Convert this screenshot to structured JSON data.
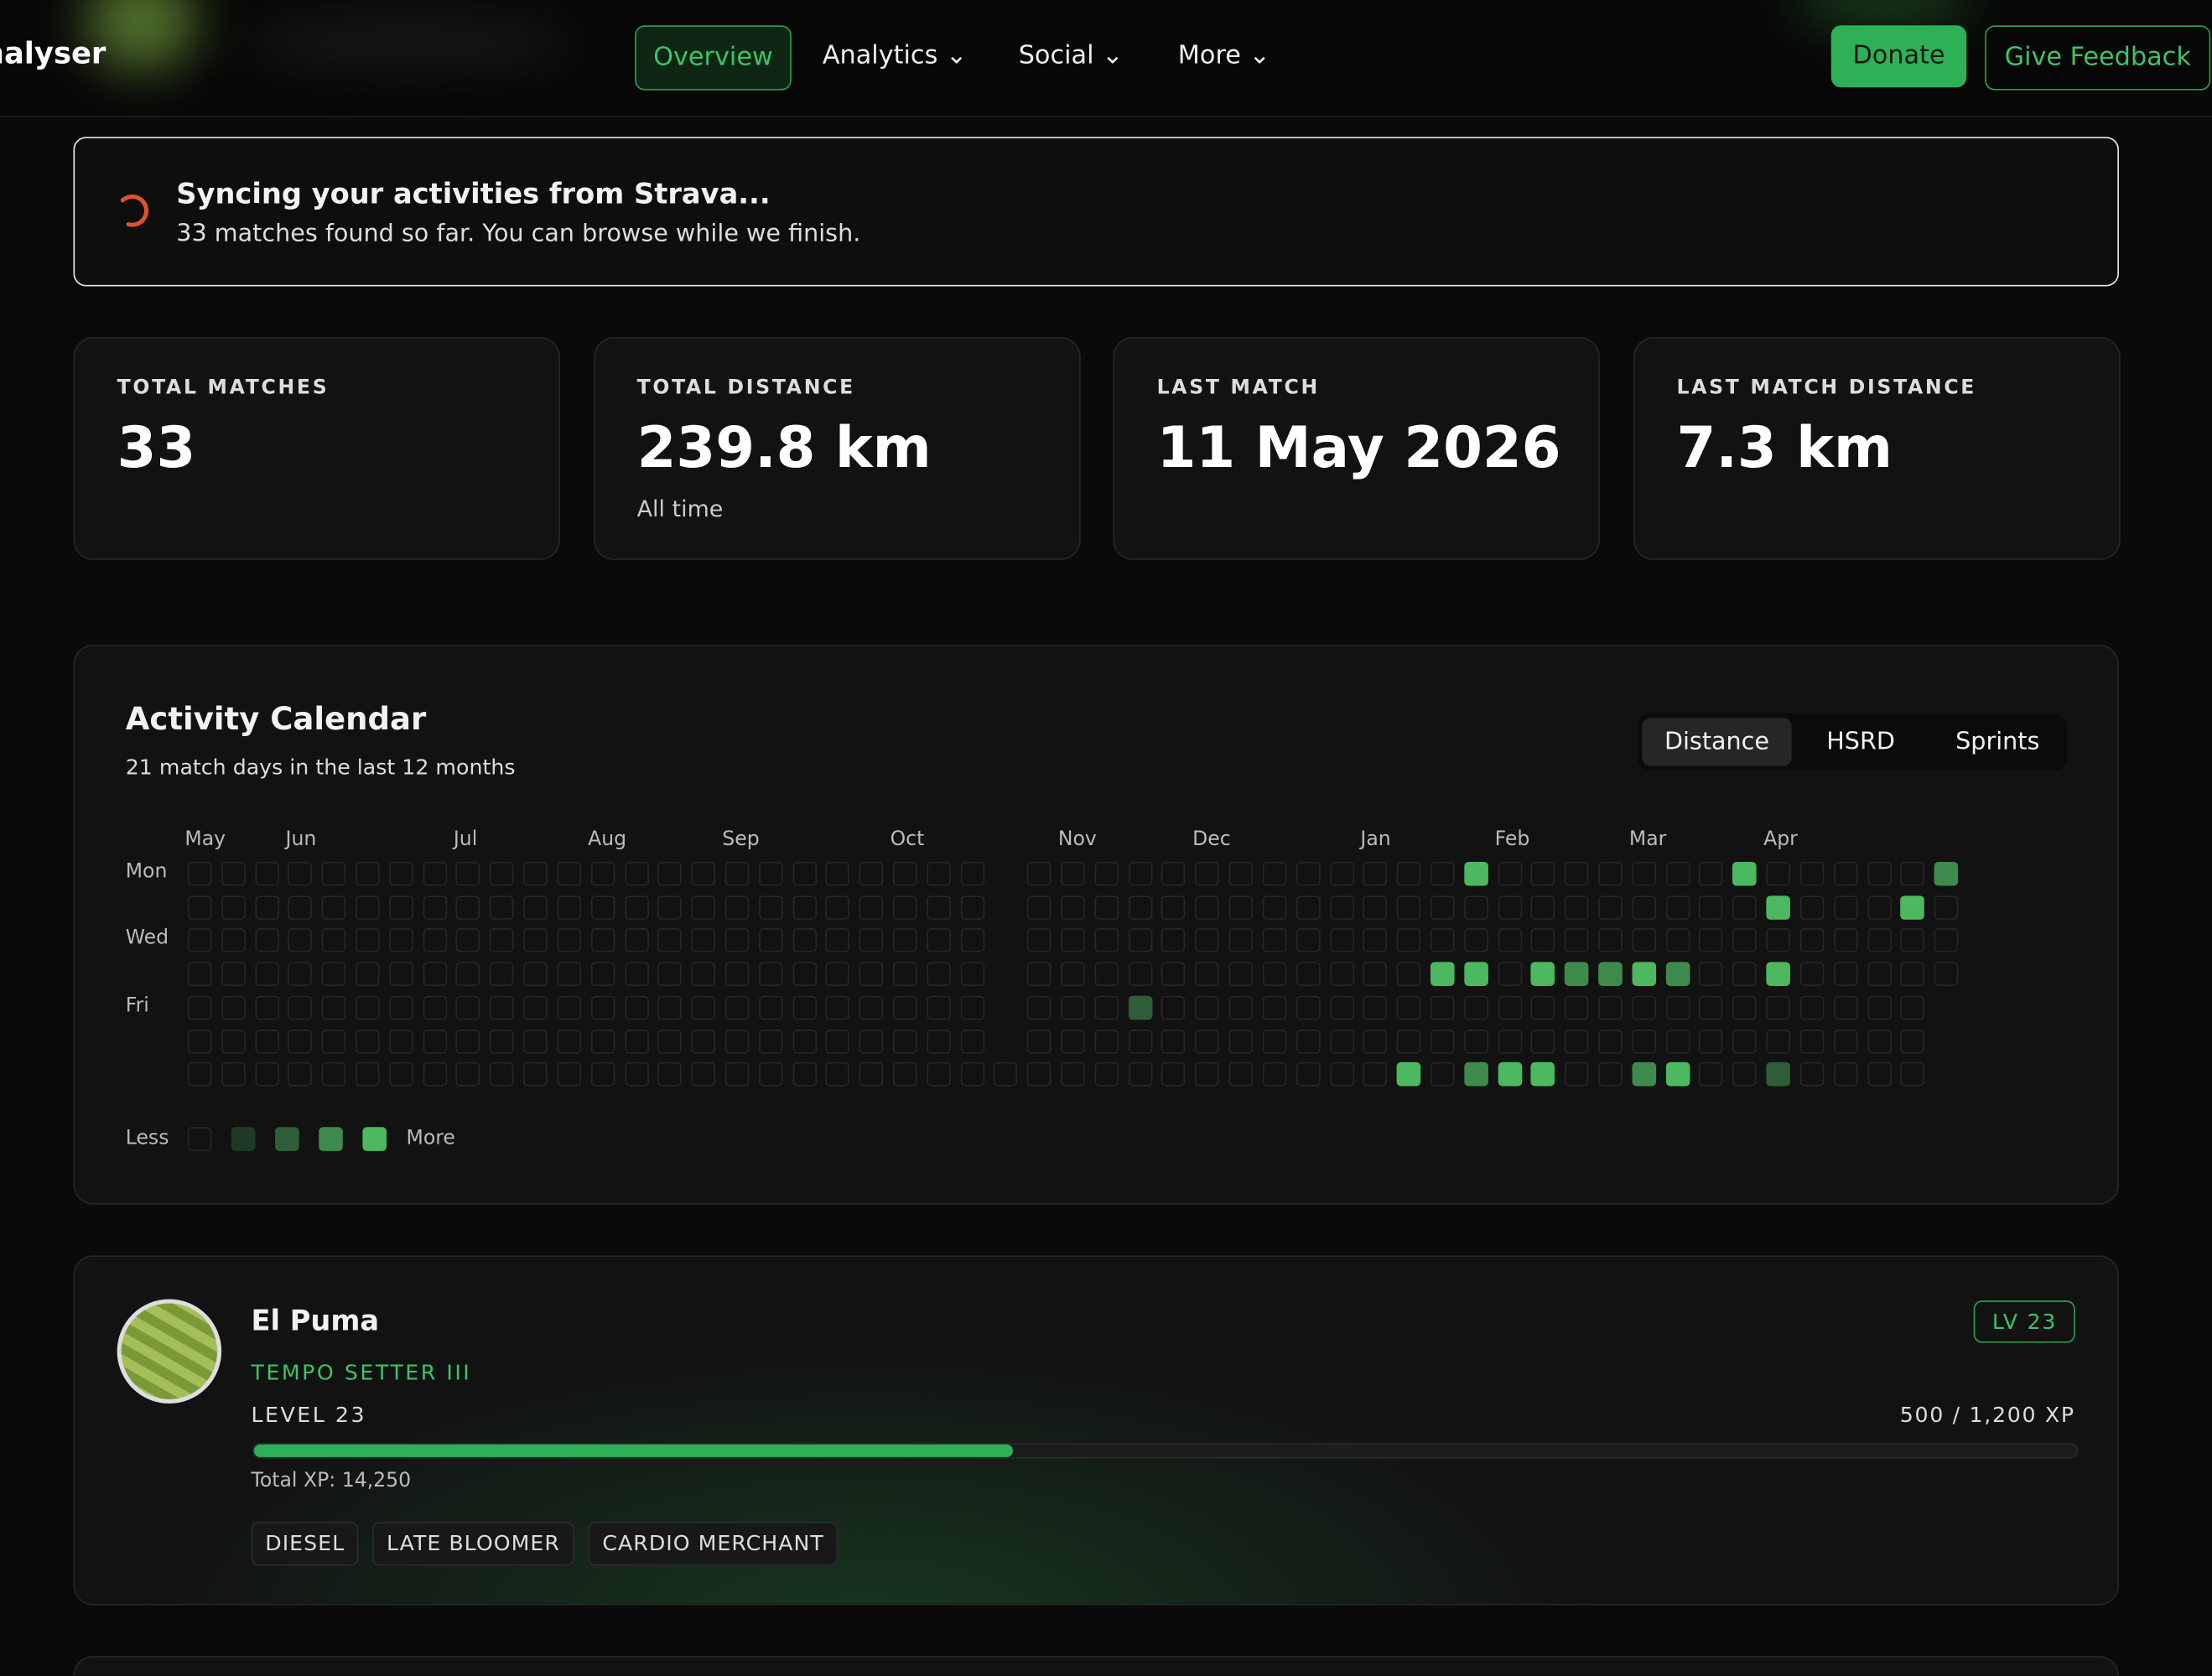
{
  "nav": {
    "brand": "nalyser",
    "links": [
      "Overview",
      "Analytics",
      "Social",
      "More"
    ],
    "donate": "Donate",
    "feedback": "Give Feedback"
  },
  "sync": {
    "title": "Syncing your activities from Strava...",
    "message": "33 matches found so far. You can browse while we finish."
  },
  "stats": [
    {
      "label": "TOTAL MATCHES",
      "value": "33"
    },
    {
      "label": "TOTAL DISTANCE",
      "value": "239.8 km",
      "note": "All time"
    },
    {
      "label": "LAST MATCH",
      "value": "11 May 2026"
    },
    {
      "label": "LAST MATCH DISTANCE",
      "value": "7.3 km"
    }
  ],
  "calendar": {
    "title": "Activity Calendar",
    "subtitle": "21 match days in the last 12 months",
    "tabs": [
      "Distance",
      "HSRD",
      "Sprints"
    ],
    "month_labels": [
      "May",
      null,
      null,
      "Jun",
      null,
      null,
      null,
      null,
      "Jul",
      null,
      null,
      null,
      "Aug",
      null,
      null,
      null,
      "Sep",
      null,
      null,
      null,
      null,
      "Oct",
      null,
      null,
      null,
      null,
      "Nov",
      null,
      null,
      null,
      "Dec",
      null,
      null,
      null,
      null,
      "Jan",
      null,
      null,
      null,
      "Feb",
      null,
      null,
      null,
      "Mar",
      null,
      null,
      null,
      "Apr",
      null,
      null,
      null,
      null,
      null
    ],
    "day_labels": [
      "Mon",
      null,
      "Wed",
      null,
      "Fri",
      null,
      null
    ],
    "levels": [
      [
        0,
        0,
        0,
        0,
        0,
        0,
        0,
        0,
        0,
        0,
        0,
        0,
        0,
        0,
        0,
        0,
        0,
        0,
        0,
        0,
        0,
        0,
        0,
        0,
        null,
        0,
        0,
        0,
        0,
        0,
        0,
        0,
        0,
        0,
        0,
        0,
        0,
        0,
        4,
        0,
        0,
        0,
        0,
        0,
        0,
        0,
        4,
        0,
        0,
        0,
        0,
        0,
        3
      ],
      [
        0,
        0,
        0,
        0,
        0,
        0,
        0,
        0,
        0,
        0,
        0,
        0,
        0,
        0,
        0,
        0,
        0,
        0,
        0,
        0,
        0,
        0,
        0,
        0,
        null,
        0,
        0,
        0,
        0,
        0,
        0,
        0,
        0,
        0,
        0,
        0,
        0,
        0,
        0,
        0,
        0,
        0,
        0,
        0,
        0,
        0,
        0,
        4,
        0,
        0,
        0,
        4,
        0
      ],
      [
        0,
        0,
        0,
        0,
        0,
        0,
        0,
        0,
        0,
        0,
        0,
        0,
        0,
        0,
        0,
        0,
        0,
        0,
        0,
        0,
        0,
        0,
        0,
        0,
        null,
        0,
        0,
        0,
        0,
        0,
        0,
        0,
        0,
        0,
        0,
        0,
        0,
        0,
        0,
        0,
        0,
        0,
        0,
        0,
        0,
        0,
        0,
        0,
        0,
        0,
        0,
        0,
        0
      ],
      [
        0,
        0,
        0,
        0,
        0,
        0,
        0,
        0,
        0,
        0,
        0,
        0,
        0,
        0,
        0,
        0,
        0,
        0,
        0,
        0,
        0,
        0,
        0,
        0,
        null,
        0,
        0,
        0,
        0,
        0,
        0,
        0,
        0,
        0,
        0,
        0,
        0,
        4,
        4,
        0,
        4,
        3,
        3,
        4,
        3,
        0,
        0,
        4,
        0,
        0,
        0,
        0,
        0
      ],
      [
        0,
        0,
        0,
        0,
        0,
        0,
        0,
        0,
        0,
        0,
        0,
        0,
        0,
        0,
        0,
        0,
        0,
        0,
        0,
        0,
        0,
        0,
        0,
        0,
        null,
        0,
        0,
        0,
        2,
        0,
        0,
        0,
        0,
        0,
        0,
        0,
        0,
        0,
        0,
        0,
        0,
        0,
        0,
        0,
        0,
        0,
        0,
        0,
        0,
        0,
        0,
        0,
        null
      ],
      [
        0,
        0,
        0,
        0,
        0,
        0,
        0,
        0,
        0,
        0,
        0,
        0,
        0,
        0,
        0,
        0,
        0,
        0,
        0,
        0,
        0,
        0,
        0,
        0,
        null,
        0,
        0,
        0,
        0,
        0,
        0,
        0,
        0,
        0,
        0,
        0,
        0,
        0,
        0,
        0,
        0,
        0,
        0,
        0,
        0,
        0,
        0,
        0,
        0,
        0,
        0,
        0,
        null
      ],
      [
        0,
        0,
        0,
        0,
        0,
        0,
        0,
        0,
        0,
        0,
        0,
        0,
        0,
        0,
        0,
        0,
        0,
        0,
        0,
        0,
        0,
        0,
        0,
        0,
        0,
        0,
        0,
        0,
        0,
        0,
        0,
        0,
        0,
        0,
        0,
        0,
        4,
        0,
        3,
        4,
        4,
        0,
        0,
        3,
        4,
        0,
        0,
        2,
        0,
        0,
        0,
        0,
        null
      ]
    ],
    "level_colors": [
      "#161616",
      "#1f3a24",
      "#2e5e38",
      "#3e8a4c",
      "#4cb860"
    ],
    "legend": {
      "less": "Less",
      "more": "More",
      "levels": [
        0,
        1,
        2,
        3,
        4
      ]
    }
  },
  "profile": {
    "name": "El Puma",
    "title": "TEMPO SETTER III",
    "level_text": "LEVEL 23",
    "badge": "LV 23",
    "xp_text": "500 / 1,200 XP",
    "xp": 500,
    "xp_target": 1200,
    "total_xp": "Total XP: 14,250",
    "tags": [
      "DIESEL",
      "LATE BLOOMER",
      "CARDIO MERCHANT"
    ]
  }
}
